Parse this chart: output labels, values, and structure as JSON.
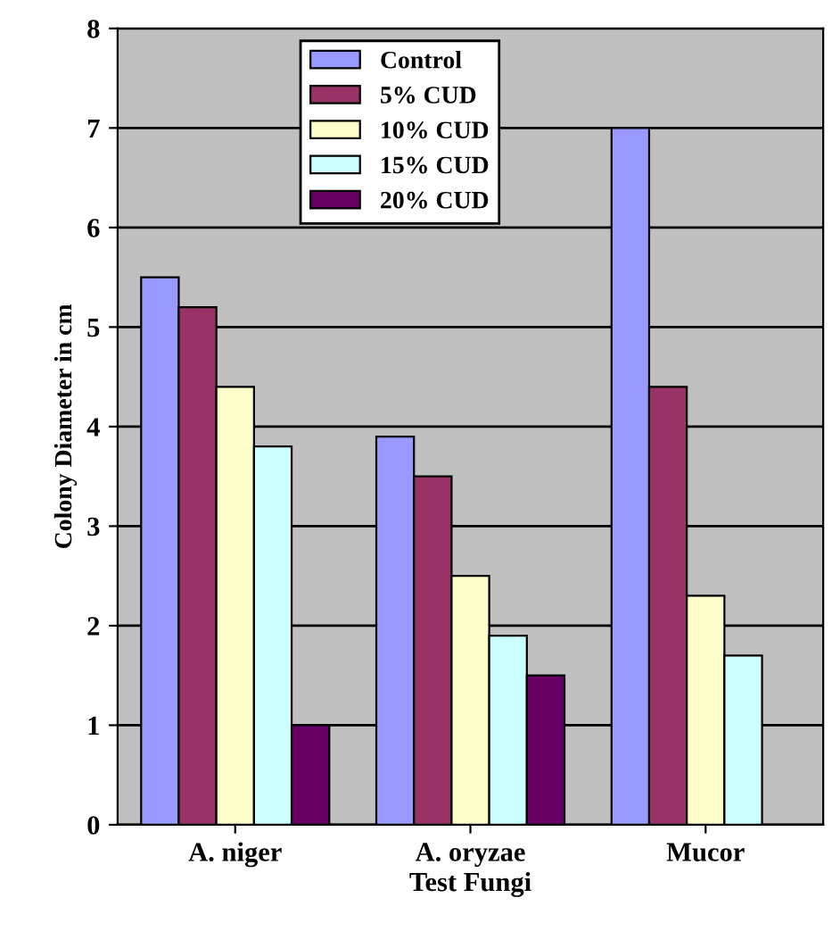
{
  "chart_data": {
    "type": "bar",
    "xlabel": "Test Fungi",
    "ylabel": "Colony Diameter in cm",
    "categories": [
      "A. niger",
      "A. oryzae",
      "Mucor"
    ],
    "series": [
      {
        "name": "Control",
        "color": "#9999ff",
        "values": [
          5.5,
          3.9,
          7.0
        ]
      },
      {
        "name": "5% CUD",
        "color": "#993366",
        "values": [
          5.2,
          3.5,
          4.4
        ]
      },
      {
        "name": "10% CUD",
        "color": "#ffffcc",
        "values": [
          4.4,
          2.5,
          2.3
        ]
      },
      {
        "name": "15% CUD",
        "color": "#ccffff",
        "values": [
          3.8,
          1.9,
          1.7
        ]
      },
      {
        "name": "20% CUD",
        "color": "#660066",
        "values": [
          1.0,
          1.5,
          null
        ]
      }
    ],
    "ylim": [
      0,
      8
    ],
    "yticks": [
      0,
      1,
      2,
      3,
      4,
      5,
      6,
      7,
      8
    ],
    "grid": "y",
    "legend": "top"
  }
}
